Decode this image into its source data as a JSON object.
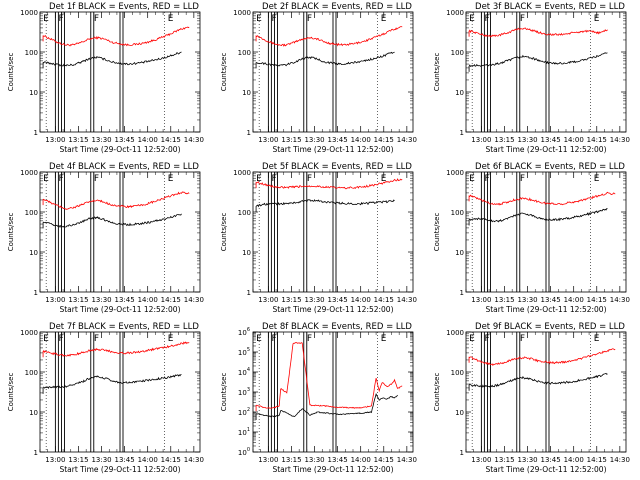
{
  "figure": {
    "start_time_label": "Start Time (29-Oct-11 12:52:00)",
    "x_tick_labels": [
      "13:00",
      "13:15",
      "13:30",
      "13:45",
      "14:00",
      "14:15",
      "14:30"
    ],
    "x_tick_minutes": [
      8,
      23,
      38,
      53,
      68,
      83,
      98
    ],
    "x_range_minutes": [
      -2,
      102
    ],
    "ylabel": "Counts/sec",
    "colors": {
      "events": "#000000",
      "lld": "#ff0000",
      "axes": "#000000",
      "background": "#ffffff"
    },
    "vertical_line_minutes": [
      2,
      8,
      12,
      31,
      50,
      79
    ],
    "letters": [
      {
        "text": "E",
        "minute": 0
      },
      {
        "text": "F",
        "minute": 10
      },
      {
        "text": "F",
        "minute": 33
      },
      {
        "text": "E",
        "minute": 81
      }
    ]
  },
  "chart_data": [
    {
      "type": "line",
      "title": "Det 1f BLACK = Events, RED = LLD",
      "ylim": [
        1,
        1000
      ],
      "yticks": [
        "1",
        "10",
        "100",
        "1000"
      ],
      "x": [
        0,
        5,
        10,
        15,
        20,
        25,
        30,
        35,
        40,
        45,
        50,
        55,
        60,
        65,
        70,
        75,
        80,
        85,
        90,
        95
      ],
      "series": [
        {
          "name": "LLD",
          "values": [
            260,
            210,
            170,
            150,
            150,
            175,
            210,
            230,
            210,
            175,
            160,
            150,
            155,
            165,
            185,
            215,
            255,
            310,
            380,
            420
          ]
        },
        {
          "name": "Events",
          "values": [
            55,
            52,
            48,
            46,
            48,
            56,
            68,
            74,
            66,
            56,
            52,
            50,
            52,
            55,
            60,
            66,
            74,
            86,
            100,
            null
          ]
        }
      ]
    },
    {
      "type": "line",
      "title": "Det 2f BLACK = Events, RED = LLD",
      "ylim": [
        1,
        1000
      ],
      "yticks": [
        "1",
        "10",
        "100",
        "1000"
      ],
      "x": [
        0,
        5,
        10,
        15,
        20,
        25,
        30,
        35,
        40,
        45,
        50,
        55,
        60,
        65,
        70,
        75,
        80,
        85,
        90,
        95
      ],
      "series": [
        {
          "name": "LLD",
          "values": [
            260,
            210,
            170,
            150,
            150,
            175,
            210,
            230,
            210,
            175,
            160,
            150,
            155,
            165,
            185,
            215,
            255,
            310,
            380,
            420
          ]
        },
        {
          "name": "Events",
          "values": [
            55,
            52,
            48,
            46,
            48,
            56,
            68,
            74,
            66,
            56,
            52,
            50,
            52,
            55,
            60,
            66,
            74,
            86,
            100,
            null
          ]
        }
      ]
    },
    {
      "type": "line",
      "title": "Det 3f BLACK = Events, RED = LLD",
      "ylim": [
        1,
        1000
      ],
      "yticks": [
        "1",
        "10",
        "100",
        "1000"
      ],
      "x": [
        0,
        5,
        10,
        15,
        20,
        25,
        30,
        35,
        40,
        45,
        50,
        55,
        60,
        65,
        70,
        75,
        80,
        85,
        90,
        95
      ],
      "series": [
        {
          "name": "LLD",
          "values": [
            340,
            300,
            260,
            250,
            265,
            300,
            360,
            390,
            360,
            310,
            280,
            270,
            275,
            290,
            310,
            330,
            320,
            300,
            360,
            null
          ]
        },
        {
          "name": "Events",
          "values": [
            45,
            46,
            46,
            48,
            52,
            60,
            70,
            78,
            72,
            62,
            55,
            52,
            52,
            54,
            58,
            64,
            72,
            82,
            95,
            null
          ]
        }
      ]
    },
    {
      "type": "line",
      "title": "Det 4f BLACK = Events, RED = LLD",
      "ylim": [
        1,
        1000
      ],
      "yticks": [
        "1",
        "10",
        "100",
        "1000"
      ],
      "x": [
        0,
        5,
        10,
        15,
        20,
        25,
        30,
        35,
        40,
        45,
        50,
        55,
        60,
        65,
        70,
        75,
        80,
        85,
        90,
        95
      ],
      "series": [
        {
          "name": "LLD",
          "values": [
            210,
            170,
            140,
            120,
            130,
            150,
            180,
            195,
            175,
            150,
            140,
            135,
            140,
            150,
            170,
            195,
            230,
            270,
            310,
            290
          ]
        },
        {
          "name": "Events",
          "values": [
            55,
            50,
            44,
            44,
            48,
            56,
            68,
            74,
            64,
            54,
            50,
            48,
            50,
            52,
            56,
            62,
            68,
            78,
            90,
            null
          ]
        }
      ]
    },
    {
      "type": "line",
      "title": "Det 5f BLACK = Events, RED = LLD",
      "ylim": [
        1,
        1000
      ],
      "yticks": [
        "1",
        "10",
        "100",
        "1000"
      ],
      "x": [
        0,
        5,
        10,
        15,
        20,
        25,
        30,
        35,
        40,
        45,
        50,
        55,
        60,
        65,
        70,
        75,
        80,
        85,
        90,
        95
      ],
      "series": [
        {
          "name": "LLD",
          "values": [
            560,
            500,
            440,
            410,
            410,
            420,
            440,
            450,
            440,
            420,
            410,
            400,
            400,
            410,
            430,
            460,
            500,
            560,
            620,
            650
          ]
        },
        {
          "name": "Events",
          "values": [
            140,
            155,
            160,
            160,
            162,
            170,
            185,
            195,
            190,
            178,
            170,
            165,
            162,
            160,
            162,
            170,
            175,
            180,
            190,
            null
          ]
        }
      ]
    },
    {
      "type": "line",
      "title": "Det 6f BLACK = Events, RED = LLD",
      "ylim": [
        1,
        1000
      ],
      "yticks": [
        "1",
        "10",
        "100",
        "1000"
      ],
      "x": [
        0,
        5,
        10,
        15,
        20,
        25,
        30,
        35,
        40,
        45,
        50,
        55,
        60,
        65,
        70,
        75,
        80,
        85,
        90,
        95
      ],
      "series": [
        {
          "name": "LLD",
          "values": [
            260,
            220,
            185,
            160,
            160,
            175,
            205,
            220,
            205,
            180,
            165,
            160,
            160,
            170,
            185,
            205,
            230,
            260,
            300,
            280
          ]
        },
        {
          "name": "Events",
          "values": [
            65,
            68,
            66,
            60,
            60,
            68,
            84,
            92,
            84,
            72,
            66,
            64,
            66,
            70,
            76,
            84,
            94,
            106,
            120,
            null
          ]
        }
      ]
    },
    {
      "type": "line",
      "title": "Det 7f BLACK = Events, RED = LLD",
      "ylim": [
        1,
        1000
      ],
      "yticks": [
        "1",
        "10",
        "100",
        "1000"
      ],
      "x": [
        0,
        5,
        10,
        15,
        20,
        25,
        30,
        35,
        40,
        45,
        50,
        55,
        60,
        65,
        70,
        75,
        80,
        85,
        90,
        95
      ],
      "series": [
        {
          "name": "LLD",
          "values": [
            330,
            300,
            270,
            260,
            270,
            300,
            340,
            370,
            350,
            320,
            300,
            300,
            310,
            330,
            360,
            390,
            420,
            460,
            520,
            550
          ]
        },
        {
          "name": "Events",
          "values": [
            40,
            42,
            42,
            44,
            48,
            56,
            68,
            76,
            70,
            60,
            55,
            54,
            56,
            60,
            64,
            68,
            72,
            78,
            86,
            null
          ]
        }
      ]
    },
    {
      "type": "line",
      "title": "Det 8f BLACK = Events, RED = LLD",
      "ylim": [
        1,
        1000000
      ],
      "yticks": [
        "10^0",
        "10^1",
        "10^2",
        "10^3",
        "10^4",
        "10^5",
        "10^6"
      ],
      "x": [
        0,
        5,
        10,
        15,
        16,
        20,
        24,
        25,
        30,
        35,
        40,
        45,
        50,
        55,
        60,
        65,
        70,
        75,
        78,
        80,
        82,
        85,
        88,
        90,
        92,
        95
      ],
      "series": [
        {
          "name": "LLD",
          "values": [
            220,
            170,
            150,
            200,
            1500,
            900,
            250000,
            280000,
            280000,
            220,
            210,
            200,
            180,
            170,
            165,
            160,
            170,
            200,
            5000,
            1200,
            3000,
            1800,
            2500,
            4000,
            1500,
            2000
          ]
        },
        {
          "name": "Events",
          "values": [
            80,
            70,
            60,
            65,
            120,
            90,
            60,
            60,
            150,
            70,
            100,
            90,
            80,
            75,
            80,
            85,
            90,
            100,
            800,
            400,
            500,
            450,
            600,
            500,
            700,
            null
          ]
        }
      ]
    },
    {
      "type": "line",
      "title": "Det 9f BLACK = Events, RED = LLD",
      "ylim": [
        1,
        1000
      ],
      "yticks": [
        "1",
        "10",
        "100",
        "1000"
      ],
      "x": [
        0,
        5,
        10,
        15,
        20,
        25,
        30,
        35,
        40,
        45,
        50,
        55,
        60,
        65,
        70,
        75,
        80,
        85,
        90,
        95
      ],
      "series": [
        {
          "name": "LLD",
          "values": [
            240,
            200,
            170,
            155,
            160,
            185,
            215,
            230,
            215,
            190,
            175,
            170,
            175,
            185,
            205,
            230,
            265,
            300,
            340,
            370
          ]
        },
        {
          "name": "Events",
          "values": [
            48,
            46,
            44,
            44,
            48,
            56,
            66,
            72,
            66,
            58,
            54,
            52,
            54,
            56,
            60,
            66,
            72,
            80,
            90,
            null
          ]
        }
      ]
    }
  ]
}
